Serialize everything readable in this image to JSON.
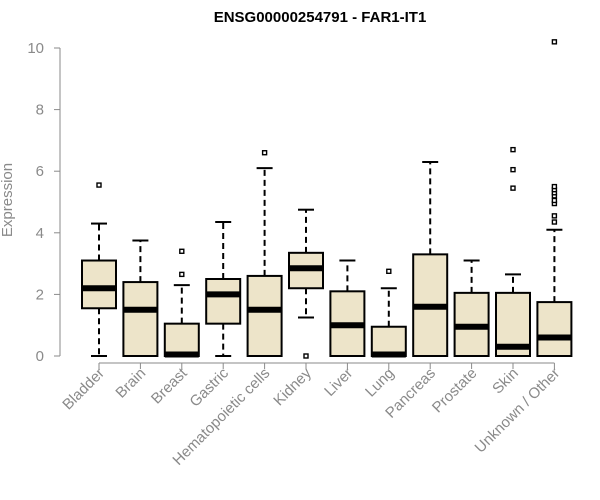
{
  "chart_data": {
    "type": "box",
    "title": "ENSG00000254791 - FAR1-IT1",
    "xlabel": "",
    "ylabel": "Expression",
    "ylim": [
      0,
      10
    ],
    "yticks": [
      0,
      2,
      4,
      6,
      8,
      10
    ],
    "grid": false,
    "box_fill": "#ede4c9",
    "box_stroke": "#000000",
    "axis_color": "#8a8a8a",
    "categories": [
      "Bladder",
      "Brain",
      "Breast",
      "Gastric",
      "Hematopoietic cells",
      "Kidney",
      "Liver",
      "Lung",
      "Pancreas",
      "Prostate",
      "Skin",
      "Unknown / Other"
    ],
    "boxes": [
      {
        "min": 0.0,
        "q1": 1.55,
        "median": 2.2,
        "q3": 3.1,
        "max": 4.3,
        "outliers": [
          5.55
        ]
      },
      {
        "min": 0.0,
        "q1": 0.0,
        "median": 1.5,
        "q3": 2.4,
        "max": 3.75,
        "outliers": []
      },
      {
        "min": 0.0,
        "q1": 0.0,
        "median": 0.05,
        "q3": 1.05,
        "max": 2.3,
        "outliers": [
          2.65,
          3.4
        ]
      },
      {
        "min": 0.0,
        "q1": 1.05,
        "median": 2.0,
        "q3": 2.5,
        "max": 4.35,
        "outliers": []
      },
      {
        "min": 0.0,
        "q1": 0.0,
        "median": 1.5,
        "q3": 2.6,
        "max": 6.1,
        "outliers": [
          6.6
        ]
      },
      {
        "min": 1.25,
        "q1": 2.2,
        "median": 2.85,
        "q3": 3.35,
        "max": 4.75,
        "outliers": [
          0.0
        ]
      },
      {
        "min": 0.0,
        "q1": 0.0,
        "median": 1.0,
        "q3": 2.1,
        "max": 3.1,
        "outliers": []
      },
      {
        "min": 0.0,
        "q1": 0.0,
        "median": 0.05,
        "q3": 0.95,
        "max": 2.2,
        "outliers": [
          2.75
        ]
      },
      {
        "min": 0.0,
        "q1": 0.0,
        "median": 1.6,
        "q3": 3.3,
        "max": 6.3,
        "outliers": []
      },
      {
        "min": 0.0,
        "q1": 0.0,
        "median": 0.95,
        "q3": 2.05,
        "max": 3.1,
        "outliers": []
      },
      {
        "min": 0.0,
        "q1": 0.0,
        "median": 0.3,
        "q3": 2.05,
        "max": 2.65,
        "outliers": [
          5.45,
          6.05,
          6.7
        ]
      },
      {
        "min": 0.0,
        "q1": 0.0,
        "median": 0.6,
        "q3": 1.75,
        "max": 4.1,
        "outliers": [
          4.35,
          4.55,
          4.95,
          5.05,
          5.2,
          5.3,
          5.4,
          5.5,
          10.2
        ]
      }
    ]
  }
}
